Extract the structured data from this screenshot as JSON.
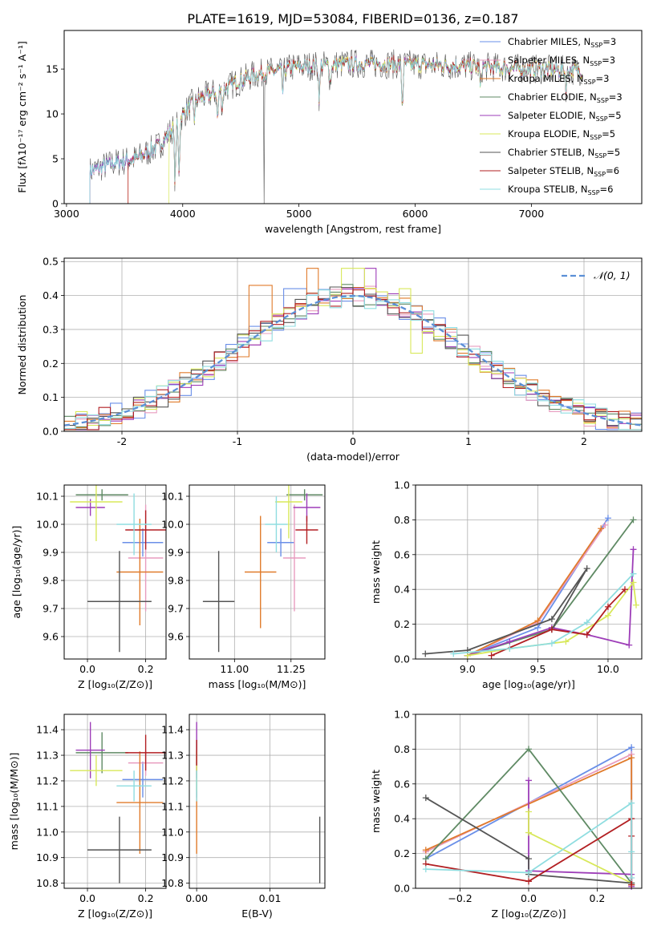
{
  "figure": {
    "title": "PLATE=1619, MJD=53084, FIBERID=0136, z=0.187"
  },
  "colors": {
    "Chabrier MILES": "#6a8fe8",
    "Salpeter MILES": "#e89cbf",
    "Kroupa MILES": "#e07b2b",
    "Chabrier ELODIE": "#5f8a64",
    "Salpeter ELODIE": "#9d3db8",
    "Kroupa ELODIE": "#d8e85a",
    "Chabrier STELIB": "#555555",
    "Salpeter STELIB": "#b21f22",
    "Kroupa STELIB": "#8fdde0",
    "gaussian": "#5b8fd6",
    "grid": "#b0b0b0"
  },
  "chart_data": [
    {
      "id": "spectrum",
      "type": "line",
      "xlabel": "wavelength [Angstrom, rest frame]",
      "ylabel": "Flux [fλ10⁻¹⁷ erg cm⁻² s⁻¹ A⁻¹]",
      "xlim": [
        2980,
        7950
      ],
      "ylim": [
        0,
        19.3
      ],
      "xticks": [
        3000,
        4000,
        5000,
        6000,
        7000
      ],
      "yticks": [
        0,
        5,
        10,
        15
      ],
      "grid": false,
      "legend_position": "right",
      "legend": [
        {
          "name": "Chabrier MILES, N",
          "sub": "SSP",
          "tail": "=3"
        },
        {
          "name": "Salpeter MILES, N",
          "sub": "SSP",
          "tail": "=3"
        },
        {
          "name": "Kroupa MILES, N",
          "sub": "SSP",
          "tail": "=3"
        },
        {
          "name": "Chabrier ELODIE, N",
          "sub": "SSP",
          "tail": "=3"
        },
        {
          "name": "Salpeter ELODIE, N",
          "sub": "SSP",
          "tail": "=5"
        },
        {
          "name": "Kroupa ELODIE, N",
          "sub": "SSP",
          "tail": "=5"
        },
        {
          "name": "Chabrier STELIB, N",
          "sub": "SSP",
          "tail": "=5"
        },
        {
          "name": "Salpeter STELIB, N",
          "sub": "SSP",
          "tail": "=6"
        },
        {
          "name": "Kroupa STELIB, N",
          "sub": "SSP",
          "tail": "=6"
        }
      ],
      "continuum": [
        [
          3200,
          3.6
        ],
        [
          3400,
          4.5
        ],
        [
          3600,
          5.0
        ],
        [
          3800,
          6.5
        ],
        [
          3950,
          9.0
        ],
        [
          4100,
          11.5
        ],
        [
          4300,
          12.5
        ],
        [
          4600,
          14.3
        ],
        [
          5000,
          15.3
        ],
        [
          5500,
          15.6
        ],
        [
          6000,
          15.5
        ],
        [
          6500,
          15.3
        ],
        [
          7000,
          15.0
        ],
        [
          7450,
          14.8
        ]
      ],
      "absorptions": [
        [
          3934,
          6.0
        ],
        [
          3968,
          5.5
        ],
        [
          4102,
          2.0
        ],
        [
          4300,
          3.0
        ],
        [
          4340,
          2.0
        ],
        [
          4861,
          2.5
        ],
        [
          5175,
          3.5
        ],
        [
          5270,
          2.0
        ],
        [
          5890,
          4.5
        ],
        [
          6563,
          2.5
        ],
        [
          7300,
          2.0
        ]
      ],
      "series_ranges": [
        [
          3200,
          7440
        ],
        [
          3200,
          7440
        ],
        [
          3530,
          7440
        ],
        [
          3200,
          7440
        ],
        [
          3200,
          7440
        ],
        [
          3880,
          7440
        ],
        [
          3200,
          7440
        ],
        [
          3530,
          7440
        ],
        [
          3200,
          7440
        ]
      ],
      "noise_amplitude": 1.2,
      "spike": [
        [
          4700,
          0
        ]
      ]
    },
    {
      "id": "residual-hist",
      "type": "histogram",
      "xlabel": "(data-model)/error",
      "ylabel": "Normed distribution",
      "xlim": [
        -2.5,
        2.5
      ],
      "ylim": [
        0,
        0.51
      ],
      "xticks": [
        -2,
        -1,
        0,
        1,
        2
      ],
      "yticks": [
        0.0,
        0.1,
        0.2,
        0.3,
        0.4,
        0.5
      ],
      "grid": true,
      "legend_position": "top-right",
      "legend_label": "𝒩(0, 1)",
      "bin_width": 0.1,
      "bin_start": -2.5,
      "mean_shape": "gaussian",
      "perturbation": 0.035,
      "highlights": [
        [
          -0.35,
          0.48,
          2
        ],
        [
          0.0,
          0.48,
          5
        ],
        [
          0.45,
          0.42,
          5
        ],
        [
          0.55,
          0.23,
          5
        ],
        [
          -0.5,
          0.42,
          0
        ],
        [
          -0.8,
          0.43,
          2
        ],
        [
          0.15,
          0.48,
          4
        ]
      ]
    },
    {
      "id": "age-vs-Z",
      "type": "errorbar",
      "xlabel": "Z [log₁₀(Z/Z⊙)]",
      "ylabel": "age  [log₁₀(age/yr)]",
      "xlim": [
        -0.08,
        0.27
      ],
      "ylim": [
        9.52,
        10.14
      ],
      "xticks": [
        0.0,
        0.2
      ],
      "yticks": [
        9.6,
        9.7,
        9.8,
        9.9,
        10.0,
        10.1
      ],
      "grid": true,
      "points": [
        {
          "s": 0,
          "x": 0.19,
          "y": 9.935,
          "xerr": 0.07,
          "yerr": 0.05
        },
        {
          "s": 1,
          "x": 0.2,
          "y": 9.88,
          "xerr": 0.06,
          "yerr": 0.19
        },
        {
          "s": 2,
          "x": 0.18,
          "y": 9.83,
          "xerr": 0.08,
          "yerr": 0.19
        },
        {
          "s": 3,
          "x": 0.05,
          "y": 10.105,
          "xerr": 0.09,
          "yerr": 0.02
        },
        {
          "s": 4,
          "x": 0.01,
          "y": 10.06,
          "xerr": 0.05,
          "yerr": 0.03
        },
        {
          "s": 5,
          "x": 0.03,
          "y": 10.08,
          "xerr": 0.09,
          "yerr": 0.14
        },
        {
          "s": 6,
          "x": 0.11,
          "y": 9.725,
          "xerr": 0.11,
          "yerr": 0.18
        },
        {
          "s": 7,
          "x": 0.2,
          "y": 9.98,
          "xerr": 0.07,
          "yerr": 0.07
        },
        {
          "s": 8,
          "x": 0.16,
          "y": 10.0,
          "xerr": 0.06,
          "yerr": 0.11
        }
      ]
    },
    {
      "id": "age-vs-mass",
      "type": "errorbar",
      "xlabel": "mass [log₁₀(M/M⊙)]",
      "ylabel": "",
      "xlim": [
        10.8,
        11.4
      ],
      "ylim": [
        9.52,
        10.14
      ],
      "xticks": [
        11.0,
        11.25
      ],
      "yticks": [
        9.6,
        9.7,
        9.8,
        9.9,
        10.0,
        10.1
      ],
      "grid": true,
      "points": [
        {
          "s": 0,
          "x": 11.205,
          "y": 9.935,
          "xerr": 0.06,
          "yerr": 0.05
        },
        {
          "s": 1,
          "x": 11.265,
          "y": 9.88,
          "xerr": 0.05,
          "yerr": 0.19
        },
        {
          "s": 2,
          "x": 11.115,
          "y": 9.83,
          "xerr": 0.07,
          "yerr": 0.2
        },
        {
          "s": 3,
          "x": 11.31,
          "y": 10.105,
          "xerr": 0.08,
          "yerr": 0.02
        },
        {
          "s": 4,
          "x": 11.32,
          "y": 10.06,
          "xerr": 0.06,
          "yerr": 0.05
        },
        {
          "s": 5,
          "x": 11.24,
          "y": 10.08,
          "xerr": 0.06,
          "yerr": 0.13
        },
        {
          "s": 6,
          "x": 10.93,
          "y": 9.725,
          "xerr": 0.07,
          "yerr": 0.18
        },
        {
          "s": 7,
          "x": 11.32,
          "y": 9.98,
          "xerr": 0.05,
          "yerr": 0.05
        },
        {
          "s": 8,
          "x": 11.185,
          "y": 10.0,
          "xerr": 0.05,
          "yerr": 0.1
        }
      ]
    },
    {
      "id": "weight-vs-age",
      "type": "line",
      "xlabel": "age  [log₁₀(age/yr)]",
      "ylabel": "mass weight",
      "xlim": [
        8.63,
        10.24
      ],
      "ylim": [
        0,
        1.0
      ],
      "xticks": [
        9.0,
        9.5,
        10.0
      ],
      "yticks": [
        0.0,
        0.2,
        0.4,
        0.6,
        0.8,
        1.0
      ],
      "grid": true,
      "series": [
        {
          "s": 0,
          "x": [
            9.0,
            9.5,
            10.0
          ],
          "y": [
            0.02,
            0.18,
            0.81
          ]
        },
        {
          "s": 1,
          "x": [
            9.0,
            9.5,
            9.98
          ],
          "y": [
            0.02,
            0.21,
            0.77
          ]
        },
        {
          "s": 2,
          "x": [
            9.0,
            9.5,
            9.95
          ],
          "y": [
            0.02,
            0.22,
            0.75
          ]
        },
        {
          "s": 3,
          "x": [
            9.0,
            9.6,
            10.18
          ],
          "y": [
            0.02,
            0.17,
            0.8
          ]
        },
        {
          "s": 4,
          "x": [
            9.0,
            9.3,
            9.6,
            9.85,
            10.15,
            10.18
          ],
          "y": [
            0.02,
            0.1,
            0.18,
            0.14,
            0.08,
            0.63
          ]
        },
        {
          "s": 5,
          "x": [
            9.0,
            9.3,
            9.7,
            10.0,
            10.18,
            10.2
          ],
          "y": [
            0.02,
            0.06,
            0.1,
            0.25,
            0.44,
            0.31
          ]
        },
        {
          "s": 6,
          "x": [
            8.7,
            9.0,
            9.6,
            9.85,
            9.6
          ],
          "y": [
            0.03,
            0.05,
            0.23,
            0.52,
            0.17
          ]
        },
        {
          "s": 7,
          "x": [
            9.17,
            9.6,
            9.85,
            10.0,
            10.12
          ],
          "y": [
            0.02,
            0.17,
            0.14,
            0.3,
            0.4
          ]
        },
        {
          "s": 8,
          "x": [
            8.9,
            9.3,
            9.6,
            9.85,
            10.18
          ],
          "y": [
            0.03,
            0.06,
            0.09,
            0.21,
            0.49
          ]
        }
      ]
    },
    {
      "id": "mass-vs-Z",
      "type": "errorbar",
      "xlabel": "Z [log₁₀(Z/Z⊙)]",
      "ylabel": "mass [log₁₀(M/M⊙)]",
      "xlim": [
        -0.08,
        0.27
      ],
      "ylim": [
        10.78,
        11.46
      ],
      "xticks": [
        0.0,
        0.2
      ],
      "yticks": [
        10.8,
        10.9,
        11.0,
        11.1,
        11.2,
        11.3,
        11.4
      ],
      "grid": true,
      "points": [
        {
          "s": 0,
          "x": 0.19,
          "y": 11.205,
          "xerr": 0.07,
          "yerr": 0.07
        },
        {
          "s": 1,
          "x": 0.2,
          "y": 11.27,
          "xerr": 0.06,
          "yerr": 0.05
        },
        {
          "s": 2,
          "x": 0.18,
          "y": 11.115,
          "xerr": 0.08,
          "yerr": 0.2
        },
        {
          "s": 3,
          "x": 0.05,
          "y": 11.31,
          "xerr": 0.09,
          "yerr": 0.08
        },
        {
          "s": 4,
          "x": 0.01,
          "y": 11.32,
          "xerr": 0.05,
          "yerr": 0.11
        },
        {
          "s": 5,
          "x": 0.03,
          "y": 11.24,
          "xerr": 0.09,
          "yerr": 0.06
        },
        {
          "s": 6,
          "x": 0.11,
          "y": 10.93,
          "xerr": 0.11,
          "yerr": 0.13
        },
        {
          "s": 7,
          "x": 0.2,
          "y": 11.31,
          "xerr": 0.07,
          "yerr": 0.07
        },
        {
          "s": 8,
          "x": 0.16,
          "y": 11.18,
          "xerr": 0.06,
          "yerr": 0.06
        }
      ]
    },
    {
      "id": "mass-vs-ebv",
      "type": "errorbar",
      "xlabel": "E(B-V)",
      "ylabel": "",
      "xlim": [
        -0.001,
        0.0175
      ],
      "ylim": [
        10.78,
        11.46
      ],
      "xticks": [
        0.0,
        0.01
      ],
      "yticks": [
        10.8,
        10.9,
        11.0,
        11.1,
        11.2,
        11.3,
        11.4
      ],
      "grid": true,
      "points": [
        {
          "s": 0,
          "x": 0.0,
          "y": 11.205,
          "xerr": 0,
          "yerr": 0.07
        },
        {
          "s": 1,
          "x": 0.0,
          "y": 11.27,
          "xerr": 0,
          "yerr": 0.05
        },
        {
          "s": 2,
          "x": 0.0,
          "y": 11.115,
          "xerr": 0,
          "yerr": 0.2
        },
        {
          "s": 3,
          "x": 0.0,
          "y": 11.31,
          "xerr": 0,
          "yerr": 0.05
        },
        {
          "s": 4,
          "x": 0.0,
          "y": 11.32,
          "xerr": 0,
          "yerr": 0.11
        },
        {
          "s": 5,
          "x": 0.0,
          "y": 11.24,
          "xerr": 0,
          "yerr": 0.08
        },
        {
          "s": 6,
          "x": 0.0168,
          "y": 10.93,
          "xerr": 0,
          "yerr": 0.13
        },
        {
          "s": 7,
          "x": 0.0,
          "y": 11.31,
          "xerr": 0,
          "yerr": 0.05
        },
        {
          "s": 8,
          "x": 0.0,
          "y": 11.18,
          "xerr": 0,
          "yerr": 0.06
        }
      ]
    },
    {
      "id": "weight-vs-Z",
      "type": "line",
      "xlabel": "Z [log₁₀(Z/Z⊙)]",
      "ylabel": "mass weight",
      "xlim": [
        -0.33,
        0.33
      ],
      "ylim": [
        0,
        1.0
      ],
      "xticks": [
        -0.2,
        0.0,
        0.2
      ],
      "yticks": [
        0.0,
        0.2,
        0.4,
        0.6,
        0.8,
        1.0
      ],
      "grid": true,
      "series": [
        {
          "s": 0,
          "x": [
            -0.3,
            0.3,
            0.3
          ],
          "y": [
            0.17,
            0.81,
            0.02
          ]
        },
        {
          "s": 1,
          "x": [
            -0.3,
            0.3,
            0.3
          ],
          "y": [
            0.21,
            0.77,
            0.02
          ]
        },
        {
          "s": 2,
          "x": [
            -0.3,
            0.3,
            0.3
          ],
          "y": [
            0.22,
            0.75,
            0.02
          ]
        },
        {
          "s": 3,
          "x": [
            -0.3,
            0.0,
            0.3
          ],
          "y": [
            0.17,
            0.8,
            0.03
          ]
        },
        {
          "s": 4,
          "x": [
            0.0,
            0.0,
            0.3,
            0.3
          ],
          "y": [
            0.62,
            0.1,
            0.08,
            0.01
          ]
        },
        {
          "s": 5,
          "x": [
            0.0,
            0.0,
            0.3,
            0.3
          ],
          "y": [
            0.44,
            0.32,
            0.03,
            0.02
          ]
        },
        {
          "s": 6,
          "x": [
            -0.3,
            0.0,
            0.0,
            0.3
          ],
          "y": [
            0.52,
            0.17,
            0.08,
            0.03
          ]
        },
        {
          "s": 7,
          "x": [
            -0.3,
            0.0,
            0.3,
            0.3,
            0.3
          ],
          "y": [
            0.14,
            0.04,
            0.4,
            0.3,
            0.02
          ]
        },
        {
          "s": 8,
          "x": [
            -0.3,
            0.0,
            0.3,
            0.3,
            0.3
          ],
          "y": [
            0.11,
            0.09,
            0.49,
            0.21,
            0.06
          ]
        }
      ]
    }
  ]
}
